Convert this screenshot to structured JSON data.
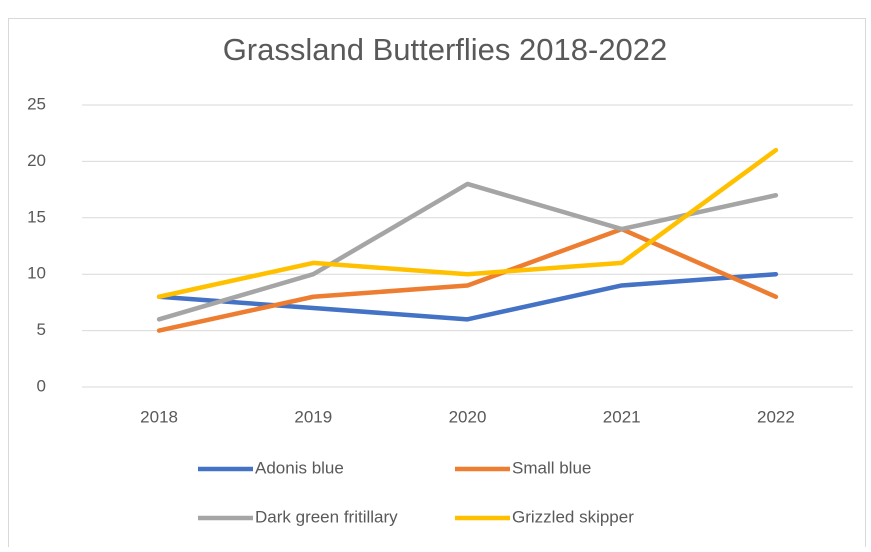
{
  "chart_data": {
    "type": "line",
    "title": "Grassland Butterflies 2018-2022",
    "categories": [
      "2018",
      "2019",
      "2020",
      "2021",
      "2022"
    ],
    "series": [
      {
        "name": "Adonis blue",
        "color": "#4472c4",
        "values": [
          8,
          7,
          6,
          9,
          10
        ]
      },
      {
        "name": "Small blue",
        "color": "#ed7d31",
        "values": [
          5,
          8,
          9,
          14,
          8
        ]
      },
      {
        "name": "Dark green fritillary",
        "color": "#a5a5a5",
        "values": [
          6,
          10,
          18,
          14,
          17
        ]
      },
      {
        "name": "Grizzled skipper",
        "color": "#ffc000",
        "values": [
          8,
          11,
          10,
          11,
          21
        ]
      }
    ],
    "ylim": [
      0,
      25
    ],
    "yticks": [
      0,
      5,
      10,
      15,
      20,
      25
    ],
    "grid": true,
    "legend": "bottom"
  }
}
